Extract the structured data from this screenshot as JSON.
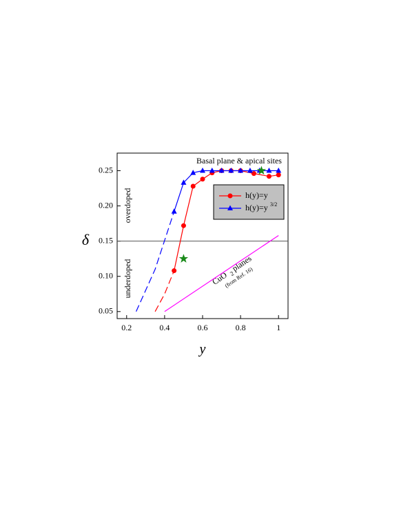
{
  "chart_data": {
    "type": "line",
    "xlabel": "y",
    "ylabel": "δ",
    "xlim": [
      0.15,
      1.05
    ],
    "ylim": [
      0.04,
      0.275
    ],
    "xticks": [
      0.2,
      0.4,
      0.6,
      0.8,
      1.0
    ],
    "yticks": [
      0.05,
      {
        "value": 0.1,
        "label": "0.10"
      },
      0.15,
      {
        "value": 0.2,
        "label": "0.20"
      },
      0.25
    ],
    "legend": "upper right",
    "series": [
      {
        "name": "h(y)=y",
        "color": "#ff0000",
        "marker": "circle",
        "x": [
          0.45,
          0.5,
          0.55,
          0.6,
          0.65,
          0.7,
          0.75,
          0.8,
          0.87,
          0.95,
          1.0
        ],
        "values": [
          0.108,
          0.172,
          0.228,
          0.238,
          0.247,
          0.25,
          0.25,
          0.25,
          0.246,
          0.242,
          0.244
        ]
      },
      {
        "name": "h(y)=y",
        "exponent": "3/2",
        "color": "#0000ff",
        "marker": "triangle",
        "x": [
          0.45,
          0.5,
          0.55,
          0.6,
          0.65,
          0.7,
          0.75,
          0.8,
          0.85,
          0.9,
          0.95,
          1.0
        ],
        "values": [
          0.192,
          0.233,
          0.247,
          0.25,
          0.25,
          0.25,
          0.25,
          0.25,
          0.25,
          0.25,
          0.25,
          0.25
        ]
      }
    ],
    "extra_lines": [
      {
        "color": "#ff0000",
        "dash": true,
        "x": [
          0.35,
          0.4,
          0.45
        ],
        "values": [
          0.05,
          0.075,
          0.108
        ]
      },
      {
        "color": "#0000ff",
        "dash": true,
        "x": [
          0.25,
          0.35,
          0.45
        ],
        "values": [
          0.05,
          0.11,
          0.192
        ]
      },
      {
        "color": "#ff00ff",
        "dash": false,
        "x": [
          0.4,
          1.0
        ],
        "values": [
          0.05,
          0.158
        ]
      }
    ],
    "reference_line": 0.15,
    "stars": [
      {
        "x": 0.5,
        "y": 0.125
      },
      {
        "x": 0.91,
        "y": 0.25
      }
    ],
    "star_color": "#1a8a1a",
    "annotations": {
      "top": "Basal plane & apical sites",
      "overdoped": "overdoped",
      "underdoped": "underdoped",
      "cuo": "CuO",
      "cuo_sub": "2",
      "planes": "planes",
      "ref": "(from Ref. 16)"
    }
  }
}
